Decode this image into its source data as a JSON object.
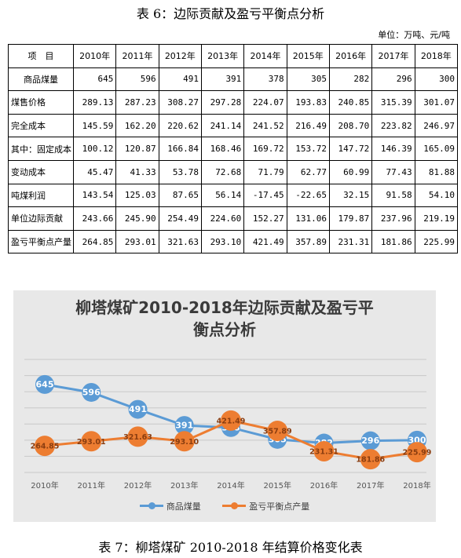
{
  "table": {
    "caption": "表 6：边际贡献及盈亏平衡点分析",
    "unit": "单位：万吨、元/吨",
    "header": [
      "项　目",
      "2010年",
      "2011年",
      "2012年",
      "2013年",
      "2014年",
      "2015年",
      "2016年",
      "2017年",
      "2018年"
    ],
    "rows": [
      {
        "label": "商品煤量",
        "values": [
          "645",
          "596",
          "491",
          "391",
          "378",
          "305",
          "282",
          "296",
          "300"
        ]
      },
      {
        "label": "煤售价格",
        "values": [
          "289.13",
          "287.23",
          "308.27",
          "297.28",
          "224.07",
          "193.83",
          "240.85",
          "315.39",
          "301.07"
        ]
      },
      {
        "label": "完全成本",
        "values": [
          "145.59",
          "162.20",
          "220.62",
          "241.14",
          "241.52",
          "216.49",
          "208.70",
          "223.82",
          "246.97"
        ]
      },
      {
        "label": "其中：固定成本",
        "values": [
          "100.12",
          "120.87",
          "166.84",
          "168.46",
          "169.72",
          "153.72",
          "147.72",
          "146.39",
          "165.09"
        ]
      },
      {
        "label": "变动成本",
        "values": [
          "45.47",
          "41.33",
          "53.78",
          "72.68",
          "71.79",
          "62.77",
          "60.99",
          "77.43",
          "81.88"
        ]
      },
      {
        "label": "吨煤利润",
        "values": [
          "143.54",
          "125.03",
          "87.65",
          "56.14",
          "-17.45",
          "-22.65",
          "32.15",
          "91.58",
          "54.10"
        ]
      },
      {
        "label": "单位边际贡献",
        "values": [
          "243.66",
          "245.90",
          "254.49",
          "224.60",
          "152.27",
          "131.06",
          "179.87",
          "237.96",
          "219.19"
        ]
      },
      {
        "label": "盈亏平衡点产量",
        "values": [
          "264.85",
          "293.01",
          "321.63",
          "293.10",
          "421.49",
          "357.89",
          "231.31",
          "181.86",
          "225.99"
        ]
      }
    ]
  },
  "chart_data": {
    "type": "line",
    "title": "柳塔煤矿2010-2018年边际贡献及盈亏平衡点分析",
    "title_lines": [
      "柳塔煤矿2010-2018年边际贡献及盈亏平",
      "衡点分析"
    ],
    "categories": [
      "2010年",
      "2011年",
      "2012年",
      "2013年",
      "2014年",
      "2015年",
      "2016年",
      "2017年",
      "2018年"
    ],
    "series": [
      {
        "name": "商品煤量",
        "color": "#5b9bd5",
        "values": [
          645,
          596,
          491,
          391,
          378,
          305,
          282,
          296,
          300
        ],
        "labels": [
          "645",
          "596",
          "491",
          "391",
          "378",
          "305",
          "282",
          "296",
          "300"
        ]
      },
      {
        "name": "盈亏平衡点产量",
        "color": "#ed7d31",
        "values": [
          264.85,
          293.01,
          321.63,
          293.1,
          421.49,
          357.89,
          231.31,
          181.86,
          225.99
        ],
        "labels": [
          "264.85",
          "293.01",
          "321.63",
          "293.10",
          "421.49",
          "357.89",
          "231.31",
          "181.86",
          "225.99"
        ]
      }
    ],
    "ylim": [
      100,
      800
    ],
    "grid": true,
    "legend": "bottom",
    "background": "#e8e8e8"
  },
  "bottom_caption": "表 7：柳塔煤矿 2010-2018 年结算价格变化表"
}
